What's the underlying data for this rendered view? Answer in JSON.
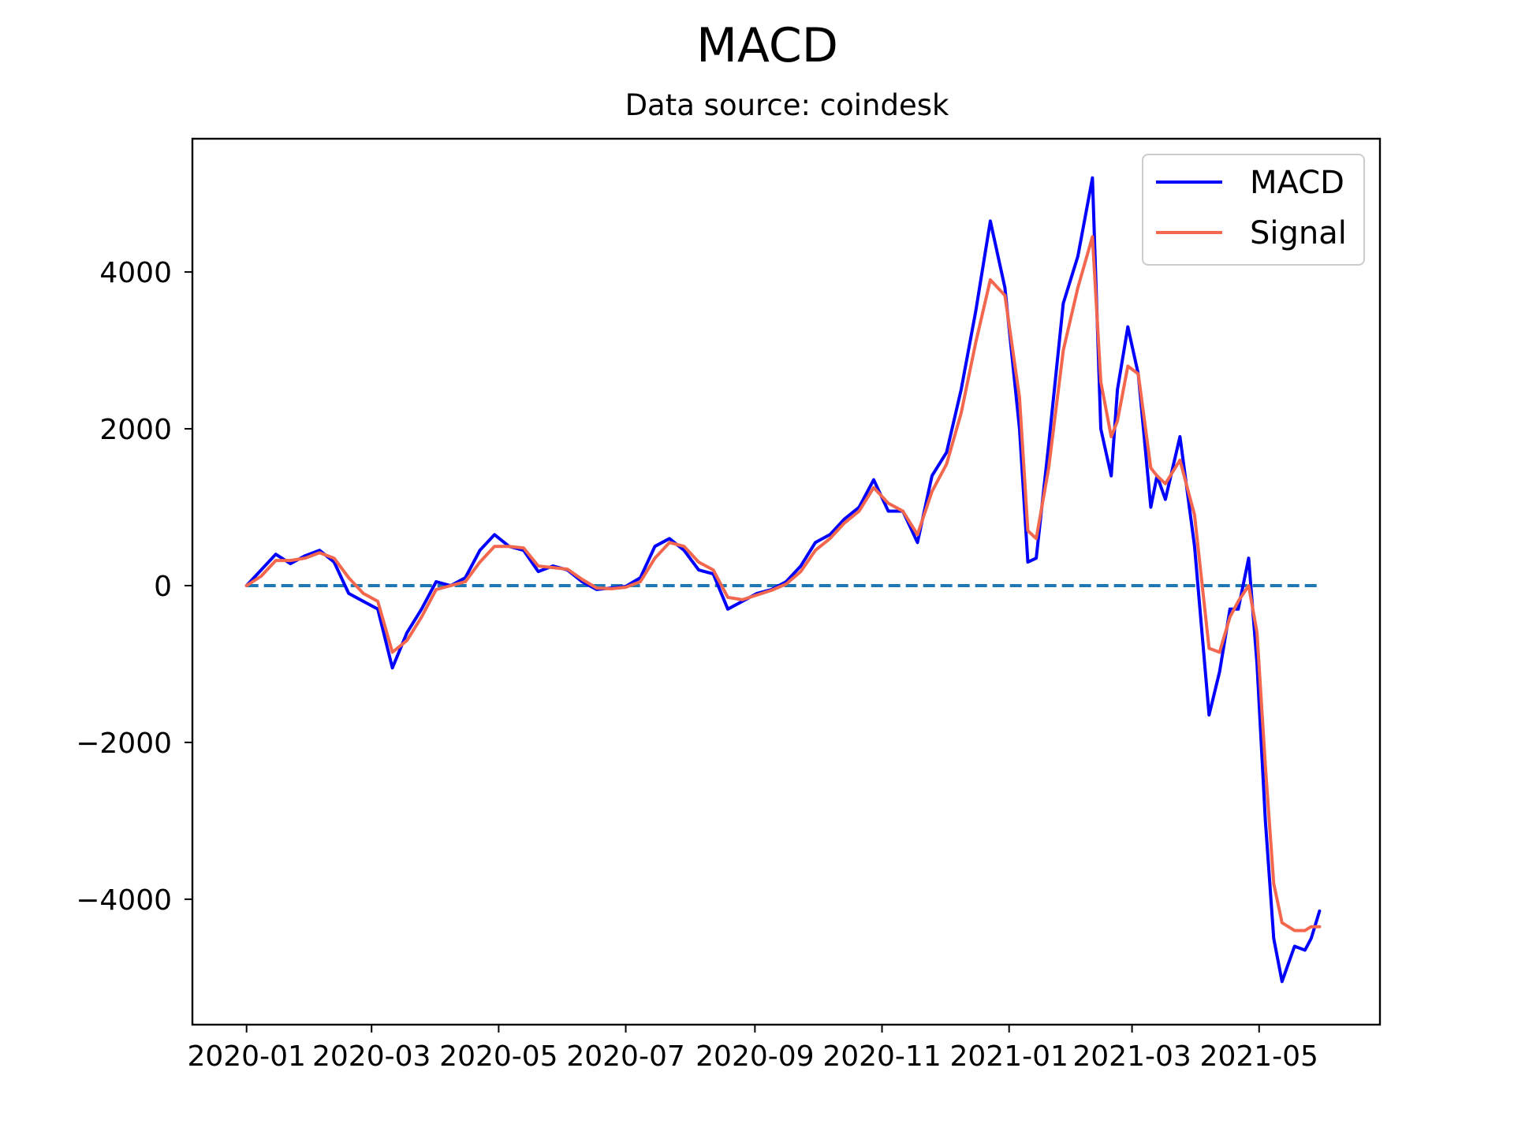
{
  "chart_data": {
    "type": "line",
    "title": "MACD",
    "subtitle": "Data source: coindesk",
    "xlabel": "",
    "ylabel": "",
    "x_ticks": [
      "2020-01",
      "2020-03",
      "2020-05",
      "2020-07",
      "2020-09",
      "2020-11",
      "2021-01",
      "2021-03",
      "2021-05"
    ],
    "y_ticks": [
      4000,
      2000,
      0,
      -2000,
      -4000
    ],
    "y_tick_labels": [
      "4000",
      "2000",
      "0",
      "−2000",
      "−4000"
    ],
    "xlim": [
      "2019-12-06",
      "2021-06-28"
    ],
    "ylim": [
      -5600,
      5700
    ],
    "grid": false,
    "legend": "top-right",
    "zero_line": {
      "value": 0,
      "style": "dashed",
      "color": "#1f77b4"
    },
    "series": [
      {
        "name": "MACD",
        "color": "#0000ff",
        "x": [
          "2020-01-01",
          "2020-01-08",
          "2020-01-15",
          "2020-01-22",
          "2020-01-29",
          "2020-02-05",
          "2020-02-12",
          "2020-02-19",
          "2020-02-26",
          "2020-03-04",
          "2020-03-11",
          "2020-03-18",
          "2020-03-25",
          "2020-04-01",
          "2020-04-08",
          "2020-04-15",
          "2020-04-22",
          "2020-04-29",
          "2020-05-06",
          "2020-05-13",
          "2020-05-20",
          "2020-05-27",
          "2020-06-03",
          "2020-06-10",
          "2020-06-17",
          "2020-06-24",
          "2020-07-01",
          "2020-07-08",
          "2020-07-15",
          "2020-07-22",
          "2020-07-29",
          "2020-08-05",
          "2020-08-12",
          "2020-08-19",
          "2020-08-26",
          "2020-09-02",
          "2020-09-09",
          "2020-09-16",
          "2020-09-23",
          "2020-09-30",
          "2020-10-07",
          "2020-10-14",
          "2020-10-21",
          "2020-10-28",
          "2020-11-04",
          "2020-11-11",
          "2020-11-18",
          "2020-11-25",
          "2020-12-02",
          "2020-12-09",
          "2020-12-16",
          "2020-12-23",
          "2020-12-30",
          "2021-01-06",
          "2021-01-10",
          "2021-01-14",
          "2021-01-20",
          "2021-01-27",
          "2021-02-03",
          "2021-02-10",
          "2021-02-14",
          "2021-02-19",
          "2021-02-22",
          "2021-02-27",
          "2021-03-04",
          "2021-03-10",
          "2021-03-13",
          "2021-03-17",
          "2021-03-24",
          "2021-03-31",
          "2021-04-07",
          "2021-04-12",
          "2021-04-17",
          "2021-04-21",
          "2021-04-26",
          "2021-04-30",
          "2021-05-04",
          "2021-05-08",
          "2021-05-12",
          "2021-05-18",
          "2021-05-23",
          "2021-05-26",
          "2021-05-30"
        ],
        "values": [
          0,
          200,
          400,
          280,
          380,
          450,
          300,
          -100,
          -200,
          -300,
          -1050,
          -600,
          -300,
          50,
          0,
          100,
          450,
          650,
          500,
          450,
          180,
          250,
          200,
          50,
          -50,
          -30,
          -10,
          100,
          500,
          600,
          450,
          200,
          150,
          -300,
          -200,
          -100,
          -50,
          50,
          250,
          550,
          650,
          850,
          1000,
          1350,
          950,
          950,
          550,
          1400,
          1700,
          2500,
          3500,
          4650,
          3800,
          2000,
          300,
          350,
          1800,
          3600,
          4200,
          5200,
          2000,
          1400,
          2500,
          3300,
          2700,
          1000,
          1400,
          1100,
          1900,
          500,
          -1650,
          -1100,
          -300,
          -300,
          350,
          -1000,
          -3000,
          -4500,
          -5050,
          -4600,
          -4650,
          -4500,
          -4150
        ]
      },
      {
        "name": "Signal",
        "color": "#f2674d",
        "x": [
          "2020-01-01",
          "2020-01-08",
          "2020-01-15",
          "2020-01-22",
          "2020-01-29",
          "2020-02-05",
          "2020-02-12",
          "2020-02-19",
          "2020-02-26",
          "2020-03-04",
          "2020-03-11",
          "2020-03-18",
          "2020-03-25",
          "2020-04-01",
          "2020-04-08",
          "2020-04-15",
          "2020-04-22",
          "2020-04-29",
          "2020-05-06",
          "2020-05-13",
          "2020-05-20",
          "2020-05-27",
          "2020-06-03",
          "2020-06-10",
          "2020-06-17",
          "2020-06-24",
          "2020-07-01",
          "2020-07-08",
          "2020-07-15",
          "2020-07-22",
          "2020-07-29",
          "2020-08-05",
          "2020-08-12",
          "2020-08-19",
          "2020-08-26",
          "2020-09-02",
          "2020-09-09",
          "2020-09-16",
          "2020-09-23",
          "2020-09-30",
          "2020-10-07",
          "2020-10-14",
          "2020-10-21",
          "2020-10-28",
          "2020-11-04",
          "2020-11-11",
          "2020-11-18",
          "2020-11-25",
          "2020-12-02",
          "2020-12-09",
          "2020-12-16",
          "2020-12-23",
          "2020-12-30",
          "2021-01-06",
          "2021-01-10",
          "2021-01-14",
          "2021-01-20",
          "2021-01-27",
          "2021-02-03",
          "2021-02-10",
          "2021-02-14",
          "2021-02-19",
          "2021-02-22",
          "2021-02-27",
          "2021-03-04",
          "2021-03-10",
          "2021-03-13",
          "2021-03-17",
          "2021-03-24",
          "2021-03-31",
          "2021-04-07",
          "2021-04-12",
          "2021-04-17",
          "2021-04-21",
          "2021-04-26",
          "2021-04-30",
          "2021-05-04",
          "2021-05-08",
          "2021-05-12",
          "2021-05-18",
          "2021-05-23",
          "2021-05-26",
          "2021-05-30"
        ],
        "values": [
          0,
          120,
          320,
          320,
          350,
          420,
          350,
          100,
          -100,
          -200,
          -850,
          -700,
          -400,
          -50,
          0,
          50,
          300,
          500,
          500,
          480,
          250,
          230,
          210,
          80,
          -30,
          -40,
          -20,
          50,
          350,
          550,
          500,
          300,
          200,
          -150,
          -180,
          -120,
          -60,
          20,
          180,
          450,
          600,
          800,
          950,
          1250,
          1050,
          950,
          650,
          1200,
          1550,
          2200,
          3100,
          3900,
          3700,
          2400,
          700,
          600,
          1500,
          3000,
          3800,
          4450,
          2600,
          1900,
          2100,
          2800,
          2700,
          1500,
          1400,
          1300,
          1600,
          900,
          -800,
          -850,
          -400,
          -200,
          0,
          -600,
          -2300,
          -3800,
          -4300,
          -4400,
          -4400,
          -4350,
          -4350
        ]
      }
    ]
  }
}
